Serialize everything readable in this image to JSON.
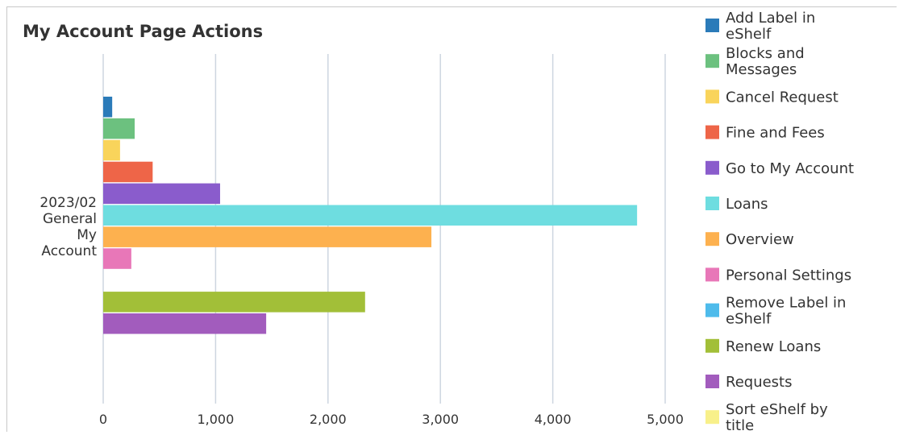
{
  "chart_data": {
    "type": "bar",
    "orientation": "horizontal",
    "title": "My Account Page Actions",
    "category_label_lines": [
      "2023/02",
      "General",
      "My",
      "Account"
    ],
    "categories": [
      "2023/02 General My Account"
    ],
    "xlim": [
      0,
      5000
    ],
    "x_ticks": [
      "0",
      "1,000",
      "2,000",
      "3,000",
      "4,000",
      "5,000"
    ],
    "grid": true,
    "legend_position": "right",
    "series": [
      {
        "name": "Add Label in eShelf",
        "legend_lines": [
          "Add Label in",
          "eShelf"
        ],
        "value": 80,
        "color": "#2b7bb9"
      },
      {
        "name": "Blocks and Messages",
        "legend_lines": [
          "Blocks and",
          "Messages"
        ],
        "value": 280,
        "color": "#6cc17f"
      },
      {
        "name": "Cancel Request",
        "legend_lines": [
          "Cancel Request"
        ],
        "value": 150,
        "color": "#f9d45b"
      },
      {
        "name": "Fine and Fees",
        "legend_lines": [
          "Fine and Fees"
        ],
        "value": 440,
        "color": "#ee6548"
      },
      {
        "name": "Go to My Account",
        "legend_lines": [
          "Go to My Account"
        ],
        "value": 1040,
        "color": "#8a5ccc"
      },
      {
        "name": "Loans",
        "legend_lines": [
          "Loans"
        ],
        "value": 4750,
        "color": "#6edde0"
      },
      {
        "name": "Overview",
        "legend_lines": [
          "Overview"
        ],
        "value": 2920,
        "color": "#fdb14f"
      },
      {
        "name": "Personal Settings",
        "legend_lines": [
          "Personal Settings"
        ],
        "value": 250,
        "color": "#e877b8"
      },
      {
        "name": "Remove Label in eShelf",
        "legend_lines": [
          "Remove Label in",
          "eShelf"
        ],
        "value": 0,
        "color": "#4ebbeb"
      },
      {
        "name": "Renew Loans",
        "legend_lines": [
          "Renew Loans"
        ],
        "value": 2330,
        "color": "#a2bf38"
      },
      {
        "name": "Requests",
        "legend_lines": [
          "Requests"
        ],
        "value": 1450,
        "color": "#a25cbd"
      },
      {
        "name": "Sort eShelf by title",
        "legend_lines": [
          "Sort eShelf by",
          "title"
        ],
        "value": 0,
        "color": "#f8f08a"
      }
    ]
  }
}
